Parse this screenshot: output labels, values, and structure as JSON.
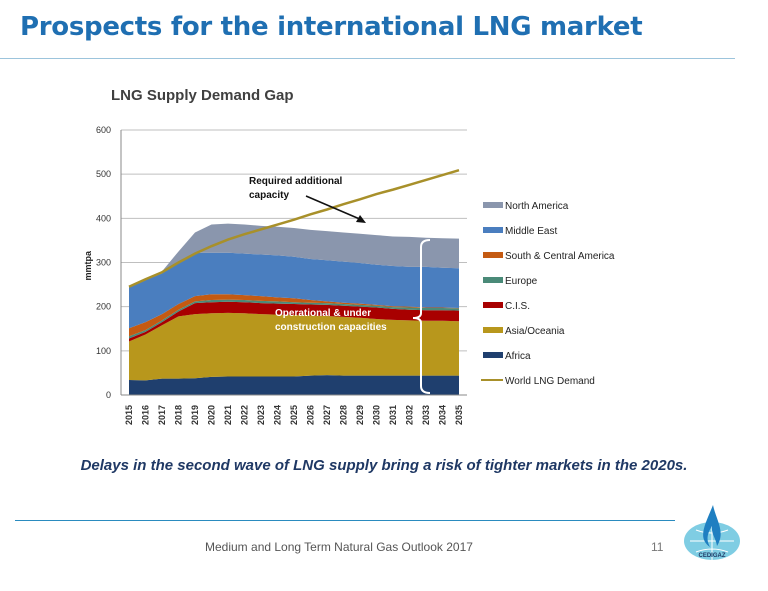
{
  "slide": {
    "title": "Prospects for the international LNG market",
    "conclusion": "Delays in the second wave of LNG supply bring a risk of tighter markets in the 2020s.",
    "footer": "Medium and Long Term Natural Gas Outlook 2017",
    "page_number": "11",
    "logo_text": "CEDIGAZ"
  },
  "chart_data": {
    "type": "area",
    "stacked": true,
    "title": "LNG Supply Demand Gap",
    "ylabel": "mmtpa",
    "xlabel": "",
    "ylim": [
      0,
      600
    ],
    "yticks": [
      0,
      100,
      200,
      300,
      400,
      500,
      600
    ],
    "grid": true,
    "legend_position": "right",
    "categories": [
      "2015",
      "2016",
      "2017",
      "2018",
      "2019",
      "2020",
      "2021",
      "2022",
      "2023",
      "2024",
      "2025",
      "2026",
      "2027",
      "2028",
      "2029",
      "2030",
      "2031",
      "2032",
      "2033",
      "2034",
      "2035"
    ],
    "series": [
      {
        "name": "Africa",
        "color": "#1f3f6e",
        "values": [
          34,
          33,
          37,
          37,
          38,
          41,
          42,
          42,
          42,
          42,
          42,
          44,
          45,
          44,
          44,
          44,
          44,
          44,
          44,
          44,
          44
        ]
      },
      {
        "name": "Asia/Oceania",
        "color": "#b8971c",
        "values": [
          87,
          104,
          121,
          141,
          145,
          144,
          144,
          143,
          141,
          140,
          139,
          136,
          134,
          133,
          131,
          128,
          126,
          125,
          124,
          124,
          123
        ]
      },
      {
        "name": "C.I.S.",
        "color": "#a80000",
        "values": [
          7,
          6,
          7,
          11,
          25,
          25,
          25,
          25,
          25,
          25,
          25,
          25,
          25,
          25,
          25,
          26,
          25,
          24,
          24,
          24,
          24
        ]
      },
      {
        "name": "Europe",
        "color": "#4a8a78",
        "values": [
          5,
          4,
          4,
          4,
          4,
          5,
          5,
          5,
          5,
          5,
          4,
          4,
          4,
          4,
          4,
          4,
          4,
          5,
          5,
          5,
          5
        ]
      },
      {
        "name": "South & Central America",
        "color": "#c45a12",
        "values": [
          18,
          18,
          14,
          13,
          12,
          13,
          12,
          11,
          11,
          9,
          9,
          6,
          4,
          3,
          3,
          2,
          2,
          2,
          1,
          1,
          1
        ]
      },
      {
        "name": "Middle East",
        "color": "#4a7ebf",
        "values": [
          93,
          95,
          92,
          94,
          98,
          94,
          94,
          94,
          94,
          95,
          94,
          93,
          93,
          93,
          92,
          91,
          91,
          90,
          92,
          90,
          90
        ]
      },
      {
        "name": "North America",
        "color": "#8a96ad",
        "values": [
          0,
          0,
          5,
          25,
          46,
          64,
          66,
          66,
          65,
          65,
          65,
          66,
          66,
          66,
          66,
          67,
          67,
          68,
          66,
          67,
          67
        ]
      }
    ],
    "line_series": {
      "name": "World LNG Demand",
      "color": "#a8902a",
      "values": [
        245,
        262,
        278,
        300,
        320,
        337,
        352,
        364,
        375,
        386,
        397,
        409,
        420,
        432,
        443,
        455,
        465,
        476,
        487,
        498,
        509
      ]
    },
    "legend_order": [
      "North America",
      "Middle East",
      "South & Central America",
      "Europe",
      "C.I.S.",
      "Asia/Oceania",
      "Africa",
      "World LNG Demand"
    ],
    "annotations": {
      "gap": "Required additional capacity",
      "gap_line1": "Required additional",
      "gap_line2": "capacity",
      "supply_line1": "Operational & under",
      "supply_line2": "construction capacities"
    }
  }
}
